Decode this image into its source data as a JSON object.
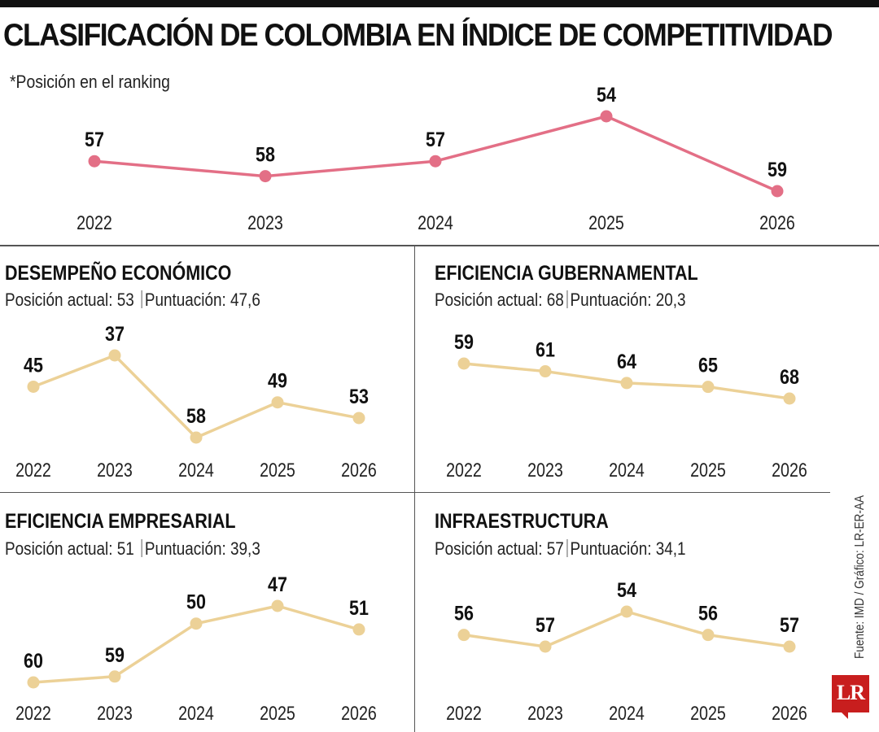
{
  "header": {
    "title": "CLASIFICACIÓN DE COLOMBIA EN ÍNDICE DE COMPETITIVIDAD",
    "note": "*Posición en el ranking"
  },
  "source": "Fuente: IMD / Gráfico: LR-ER-AA",
  "logo": "LR",
  "colors": {
    "main_line": "#e36f86",
    "panel_line": "#ecd197",
    "text": "#1a1a1a",
    "divider": "#555555"
  },
  "panels": {
    "desempeno": {
      "title": "DESEMPEÑO ECONÓMICO",
      "pos": "Posición actual: 53",
      "score": "Puntuación: 47,6"
    },
    "gubernamental": {
      "title": "EFICIENCIA GUBERNAMENTAL",
      "pos": "Posición actual: 68",
      "score": "Puntuación: 20,3"
    },
    "empresarial": {
      "title": "EFICIENCIA EMPRESARIAL",
      "pos": "Posición actual: 51",
      "score": "Puntuación: 39,3"
    },
    "infraestructura": {
      "title": "INFRAESTRUCTURA",
      "pos": "Posición actual: 57",
      "score": "Puntuación: 34,1"
    }
  },
  "chart_data": [
    {
      "id": "general",
      "type": "line",
      "title": "CLASIFICACIÓN DE COLOMBIA EN ÍNDICE DE COMPETITIVIDAD",
      "x": [
        "2022",
        "2023",
        "2024",
        "2025",
        "2026"
      ],
      "series": [
        {
          "values": [
            57,
            58,
            57,
            54,
            59
          ]
        }
      ],
      "y_inverted": true,
      "grid": false
    },
    {
      "id": "desempeno",
      "type": "line",
      "title": "DESEMPEÑO ECONÓMICO",
      "x": [
        "2022",
        "2023",
        "2024",
        "2025",
        "2026"
      ],
      "series": [
        {
          "values": [
            45,
            37,
            58,
            49,
            53
          ]
        }
      ],
      "y_inverted": true,
      "grid": false
    },
    {
      "id": "gubernamental",
      "type": "line",
      "title": "EFICIENCIA GUBERNAMENTAL",
      "x": [
        "2022",
        "2023",
        "2024",
        "2025",
        "2026"
      ],
      "series": [
        {
          "values": [
            59,
            61,
            64,
            65,
            68
          ]
        }
      ],
      "y_inverted": true,
      "grid": false
    },
    {
      "id": "empresarial",
      "type": "line",
      "title": "EFICIENCIA EMPRESARIAL",
      "x": [
        "2022",
        "2023",
        "2024",
        "2025",
        "2026"
      ],
      "series": [
        {
          "values": [
            60,
            59,
            50,
            47,
            51
          ]
        }
      ],
      "y_inverted": true,
      "grid": false
    },
    {
      "id": "infraestructura",
      "type": "line",
      "title": "INFRAESTRUCTURA",
      "x": [
        "2022",
        "2023",
        "2024",
        "2025",
        "2026"
      ],
      "series": [
        {
          "values": [
            56,
            57,
            54,
            56,
            57
          ]
        }
      ],
      "y_inverted": true,
      "grid": false
    }
  ]
}
